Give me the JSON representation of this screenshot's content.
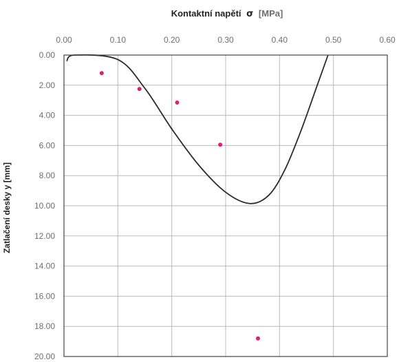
{
  "chart_data": {
    "type": "scatter",
    "x_axis_title": {
      "label": "Kontaktní napětí",
      "symbol": "σ",
      "unit": "[MPa]"
    },
    "y_axis_title": "Zatlačení desky y [mm]",
    "xlim": [
      0.0,
      0.6
    ],
    "ylim": [
      0.0,
      20.0
    ],
    "y_inverted": true,
    "x_axis_position": "top",
    "x_ticks": [
      "0.00",
      "0.10",
      "0.20",
      "0.30",
      "0.40",
      "0.50",
      "0.60"
    ],
    "y_ticks": [
      "0.00",
      "2.00",
      "4.00",
      "6.00",
      "8.00",
      "10.00",
      "12.00",
      "14.00",
      "16.00",
      "18.00",
      "20.00"
    ],
    "grid": true,
    "colors": {
      "points": "#e0206a",
      "curve": "#2a2a2a",
      "grid": "#b9b9b9"
    },
    "series": [
      {
        "type": "scatter",
        "points": [
          {
            "x": 0.07,
            "y": 1.2
          },
          {
            "x": 0.14,
            "y": 2.25
          },
          {
            "x": 0.21,
            "y": 3.15
          },
          {
            "x": 0.29,
            "y": 5.95
          },
          {
            "x": 0.36,
            "y": 18.8
          }
        ]
      },
      {
        "type": "line",
        "points": [
          {
            "x": 0.005,
            "y": 0.4
          },
          {
            "x": 0.02,
            "y": 0.0
          },
          {
            "x": 0.1,
            "y": 0.3
          },
          {
            "x": 0.15,
            "y": 2.2
          },
          {
            "x": 0.2,
            "y": 4.9
          },
          {
            "x": 0.25,
            "y": 7.3
          },
          {
            "x": 0.3,
            "y": 9.1
          },
          {
            "x": 0.345,
            "y": 9.85
          },
          {
            "x": 0.38,
            "y": 9.3
          },
          {
            "x": 0.41,
            "y": 7.6
          },
          {
            "x": 0.44,
            "y": 5.0
          },
          {
            "x": 0.47,
            "y": 2.0
          },
          {
            "x": 0.49,
            "y": 0.0
          }
        ]
      }
    ]
  }
}
